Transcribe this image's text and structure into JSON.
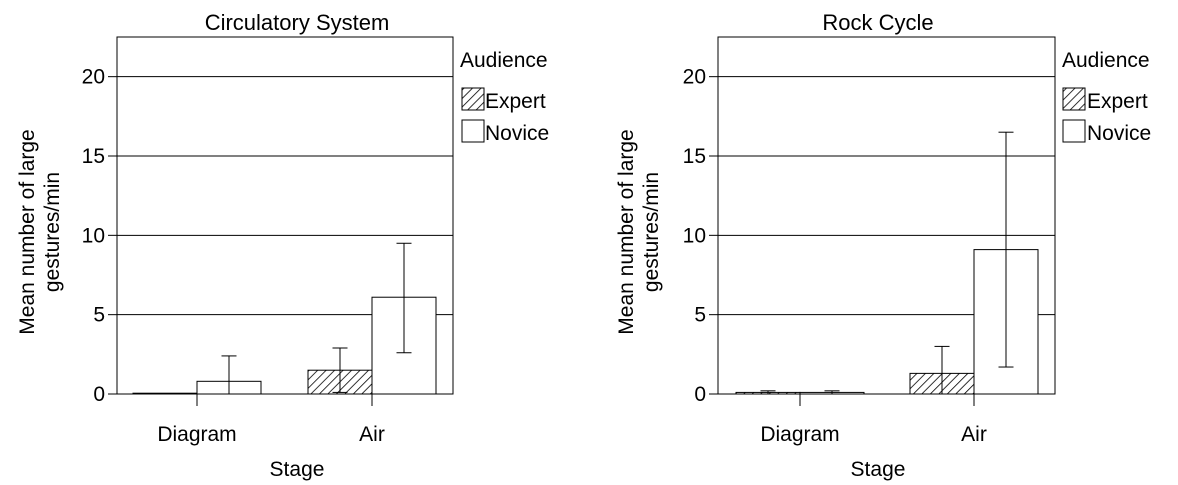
{
  "chart_data": [
    {
      "type": "bar",
      "title": "Circulatory System",
      "xlabel": "Stage",
      "ylabel_lines": [
        "Mean number of large",
        "gestures/min"
      ],
      "categories": [
        "Diagram",
        "Air"
      ],
      "ylim": [
        0,
        22.5
      ],
      "yticks": [
        0,
        5,
        10,
        15,
        20
      ],
      "grid": true,
      "legend": {
        "title": "Audience",
        "position": "right"
      },
      "series": [
        {
          "name": "Expert",
          "values": [
            0.0,
            1.5
          ],
          "err_low": [
            0.0,
            0.1
          ],
          "err_high": [
            0.0,
            2.9
          ],
          "fill": "hatch"
        },
        {
          "name": "Novice",
          "values": [
            0.8,
            6.1
          ],
          "err_low": [
            0.0,
            2.6
          ],
          "err_high": [
            2.4,
            9.5
          ],
          "fill": "white"
        }
      ]
    },
    {
      "type": "bar",
      "title": "Rock Cycle",
      "xlabel": "Stage",
      "ylabel_lines": [
        "Mean number of large",
        "gestures/min"
      ],
      "categories": [
        "Diagram",
        "Air"
      ],
      "ylim": [
        0,
        22.5
      ],
      "yticks": [
        0,
        5,
        10,
        15,
        20
      ],
      "grid": true,
      "legend": {
        "title": "Audience",
        "position": "right"
      },
      "series": [
        {
          "name": "Expert",
          "values": [
            0.1,
            1.3
          ],
          "err_low": [
            0.0,
            0.0
          ],
          "err_high": [
            0.2,
            3.0
          ],
          "fill": "hatch"
        },
        {
          "name": "Novice",
          "values": [
            0.1,
            9.1
          ],
          "err_low": [
            0.0,
            1.7
          ],
          "err_high": [
            0.2,
            16.5
          ],
          "fill": "white"
        }
      ]
    }
  ],
  "colors": {
    "axis": "#000000",
    "grid": "#000000",
    "bar_stroke": "#000000",
    "hatch": "#000000",
    "background": "#ffffff"
  }
}
